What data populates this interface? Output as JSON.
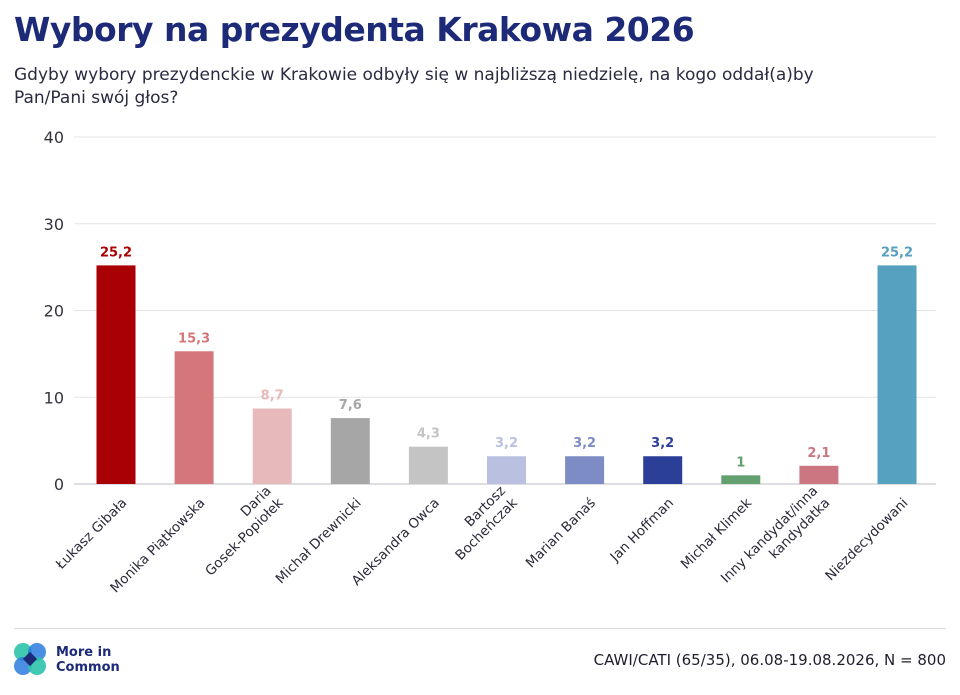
{
  "title": "Wybory na prezydenta Krakowa 2026",
  "subtitle": "Gdyby wybory prezydenckie w Krakowie odbyły się w najbliższą niedzielę, na kogo oddał(a)by Pan/Pani swój głos?",
  "footer": {
    "logo_line1": "More in",
    "logo_line2": "Common",
    "source": "CAWI/CATI (65/35), 06.08-19.08.2026, N = 800"
  },
  "chart_data": {
    "type": "bar",
    "categories": [
      [
        "Łukasz Gibała"
      ],
      [
        "Monika Piątkowska"
      ],
      [
        "Daria",
        "Gosek-Popiołek"
      ],
      [
        "Michał Drewnicki"
      ],
      [
        "Aleksandra Owca"
      ],
      [
        "Bartosz",
        "Bocheńczak"
      ],
      [
        "Marian Banaś"
      ],
      [
        "Jan Hoffman"
      ],
      [
        "Michał Klimek"
      ],
      [
        "Inny kandydat/inna",
        "kandydatka"
      ],
      [
        "Niezdecydowani"
      ]
    ],
    "values": [
      25.2,
      15.3,
      8.7,
      7.6,
      4.3,
      3.2,
      3.2,
      3.2,
      1,
      2.1,
      25.2
    ],
    "value_labels": [
      "25,2",
      "15,3",
      "8,7",
      "7,6",
      "4,3",
      "3,2",
      "3,2",
      "3,2",
      "1",
      "2,1",
      "25,2"
    ],
    "bar_colors": [
      "#a90006",
      "#d5777a",
      "#e8b9ba",
      "#a6a6a6",
      "#c4c4c4",
      "#bac1e0",
      "#7e8cc5",
      "#2c3f98",
      "#62a070",
      "#cc7682",
      "#56a0c0"
    ],
    "label_colors": [
      "#a90006",
      "#d5777a",
      "#e8b9ba",
      "#a6a6a6",
      "#c4c4c4",
      "#bac1e0",
      "#7e8cc5",
      "#2c3f98",
      "#62a070",
      "#cc7682",
      "#56a0c0"
    ],
    "ylim": [
      0,
      40
    ],
    "yticks": [
      "0",
      "10",
      "20",
      "30",
      "40"
    ],
    "grid": true,
    "legend": "none"
  }
}
